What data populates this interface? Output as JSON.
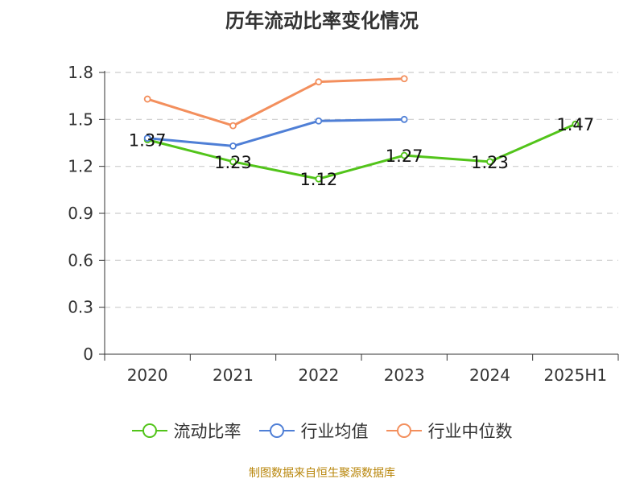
{
  "title": "历年流动比率变化情况",
  "source": "制图数据来自恒生聚源数据库",
  "colors": {
    "current_ratio": "#52c41a",
    "industry_avg": "#4f7fd6",
    "industry_median": "#f38f5d"
  },
  "chart_data": {
    "type": "line",
    "title": "历年流动比率变化情况",
    "categories": [
      "2020",
      "2021",
      "2022",
      "2023",
      "2024",
      "2025H1"
    ],
    "y_ticks": [
      "0",
      "0.3",
      "0.6",
      "0.9",
      "1.2",
      "1.5",
      "1.8"
    ],
    "ylim": [
      0,
      1.8
    ],
    "grid": "horizontal-dashed",
    "legend_position": "bottom-center",
    "series": [
      {
        "name": "流动比率",
        "color": "#52c41a",
        "values": [
          1.37,
          1.23,
          1.12,
          1.27,
          1.23,
          1.47
        ],
        "labels": [
          "1.37",
          "1.23",
          "1.12",
          "1.27",
          "1.23",
          "1.47"
        ]
      },
      {
        "name": "行业均值",
        "color": "#4f7fd6",
        "values": [
          1.38,
          1.33,
          1.49,
          1.5,
          null,
          null
        ]
      },
      {
        "name": "行业中位数",
        "color": "#f38f5d",
        "values": [
          1.63,
          1.46,
          1.74,
          1.76,
          null,
          null
        ]
      }
    ]
  }
}
